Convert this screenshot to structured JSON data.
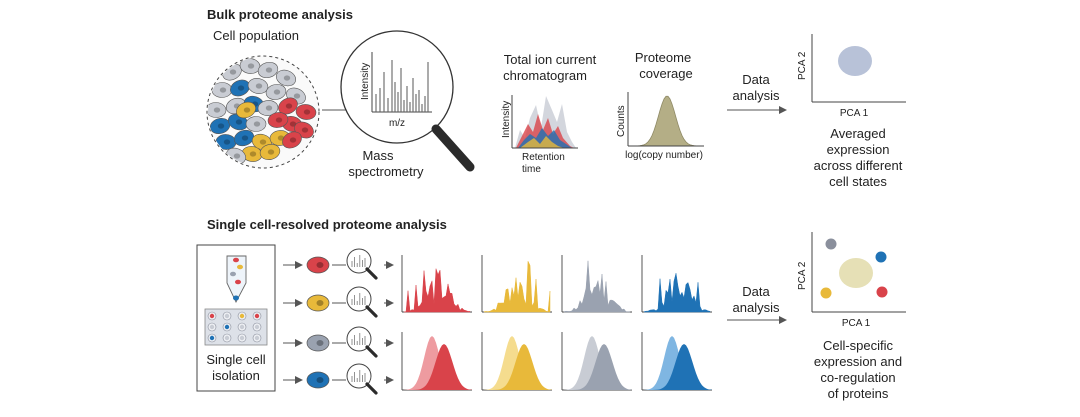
{
  "colors": {
    "red": "#d9434a",
    "red_light": "#ee9ba0",
    "yellow": "#e8b93a",
    "yellow_light": "#f5dc8e",
    "gray": "#9aa2b0",
    "gray_light": "#c8ccd4",
    "blue": "#1f72b5",
    "blue_light": "#7fb6e2",
    "olive": "#b4ae86",
    "pca_bulk": "#b8c2d8",
    "pca_single": "#e6e0b6",
    "pca_dot_gray": "#8a8f9c",
    "line": "#555555"
  },
  "bulk": {
    "section_title": "Bulk proteome analysis",
    "cell_population_label": "Cell population",
    "ms_axis_y": "Intensity",
    "ms_axis_x": "m/z",
    "ms_label_1": "Mass",
    "ms_label_2": "spectrometry",
    "tic_title_1": "Total ion current",
    "tic_title_2": "chromatogram",
    "tic_axis_y": "Intensity",
    "tic_axis_x_1": "Retention",
    "tic_axis_x_2": "time",
    "coverage_title_1": "Proteome",
    "coverage_title_2": "coverage",
    "coverage_axis_y": "Counts",
    "coverage_axis_x": "log(copy number)",
    "data_analysis_1": "Data",
    "data_analysis_2": "analysis",
    "pca_y": "PCA 2",
    "pca_x": "PCA 1",
    "result_1": "Averaged",
    "result_2": "expression",
    "result_3": "across different",
    "result_4": "cell states"
  },
  "single": {
    "section_title": "Single cell-resolved proteome analysis",
    "isolation_label_1": "Single cell",
    "isolation_label_2": "isolation",
    "data_analysis_1": "Data",
    "data_analysis_2": "analysis",
    "pca_y": "PCA 2",
    "pca_x": "PCA 1",
    "result_1": "Cell-specific",
    "result_2": "expression and",
    "result_3": "co-regulation",
    "result_4": "of proteins"
  }
}
